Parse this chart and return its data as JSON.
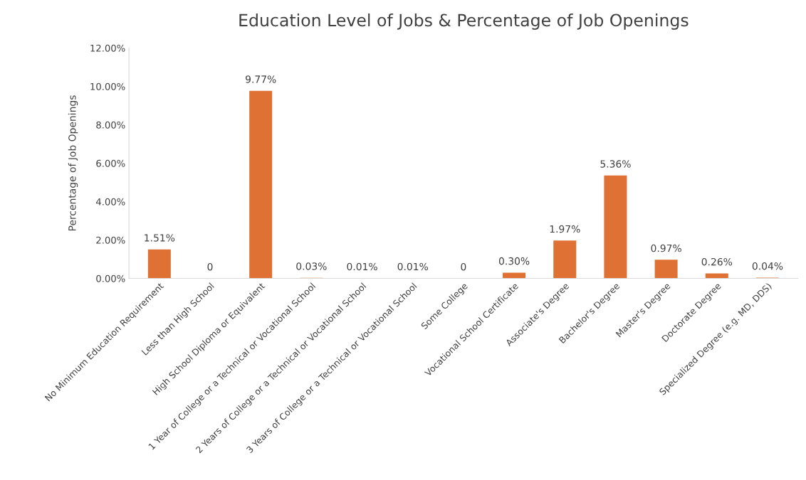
{
  "chart_data": {
    "type": "bar",
    "title": "Education Level of Jobs & Percentage of Job Openings",
    "ylabel": "Percentage of Job Openings",
    "categories": [
      "No Minimum Education Requirement",
      "Less than High School",
      "High School Diploma or Equivalent",
      "1 Year of College or a Technical or Vocational School",
      "2 Years of College or a Technical or Vocational School",
      "3 Years of College or a Technical or Vocational School",
      "Some College",
      "Vocational School Certificate",
      "Associate's Degree",
      "Bachelor's Degree",
      "Master's Degree",
      "Doctorate Degree",
      "Specialized Degree (e.g. MD, DDS)"
    ],
    "values": [
      1.51,
      0,
      9.77,
      0.03,
      0.01,
      0.01,
      0,
      0.3,
      1.97,
      5.36,
      0.97,
      0.26,
      0.04
    ],
    "value_labels": [
      "1.51%",
      "0",
      "9.77%",
      "0.03%",
      "0.01%",
      "0.01%",
      "0",
      "0.30%",
      "1.97%",
      "5.36%",
      "0.97%",
      "0.26%",
      "0.04%"
    ],
    "color": "#de7133",
    "ylim": [
      0,
      12
    ],
    "yticks": [
      {
        "value": 0,
        "label": "0.00%"
      },
      {
        "value": 2,
        "label": "2.00%"
      },
      {
        "value": 4,
        "label": "4.00%"
      },
      {
        "value": 6,
        "label": "6.00%"
      },
      {
        "value": 8,
        "label": "8.00%"
      },
      {
        "value": 10,
        "label": "10.00%"
      },
      {
        "value": 12,
        "label": "12.00%"
      }
    ],
    "grid": false,
    "legend": false
  }
}
